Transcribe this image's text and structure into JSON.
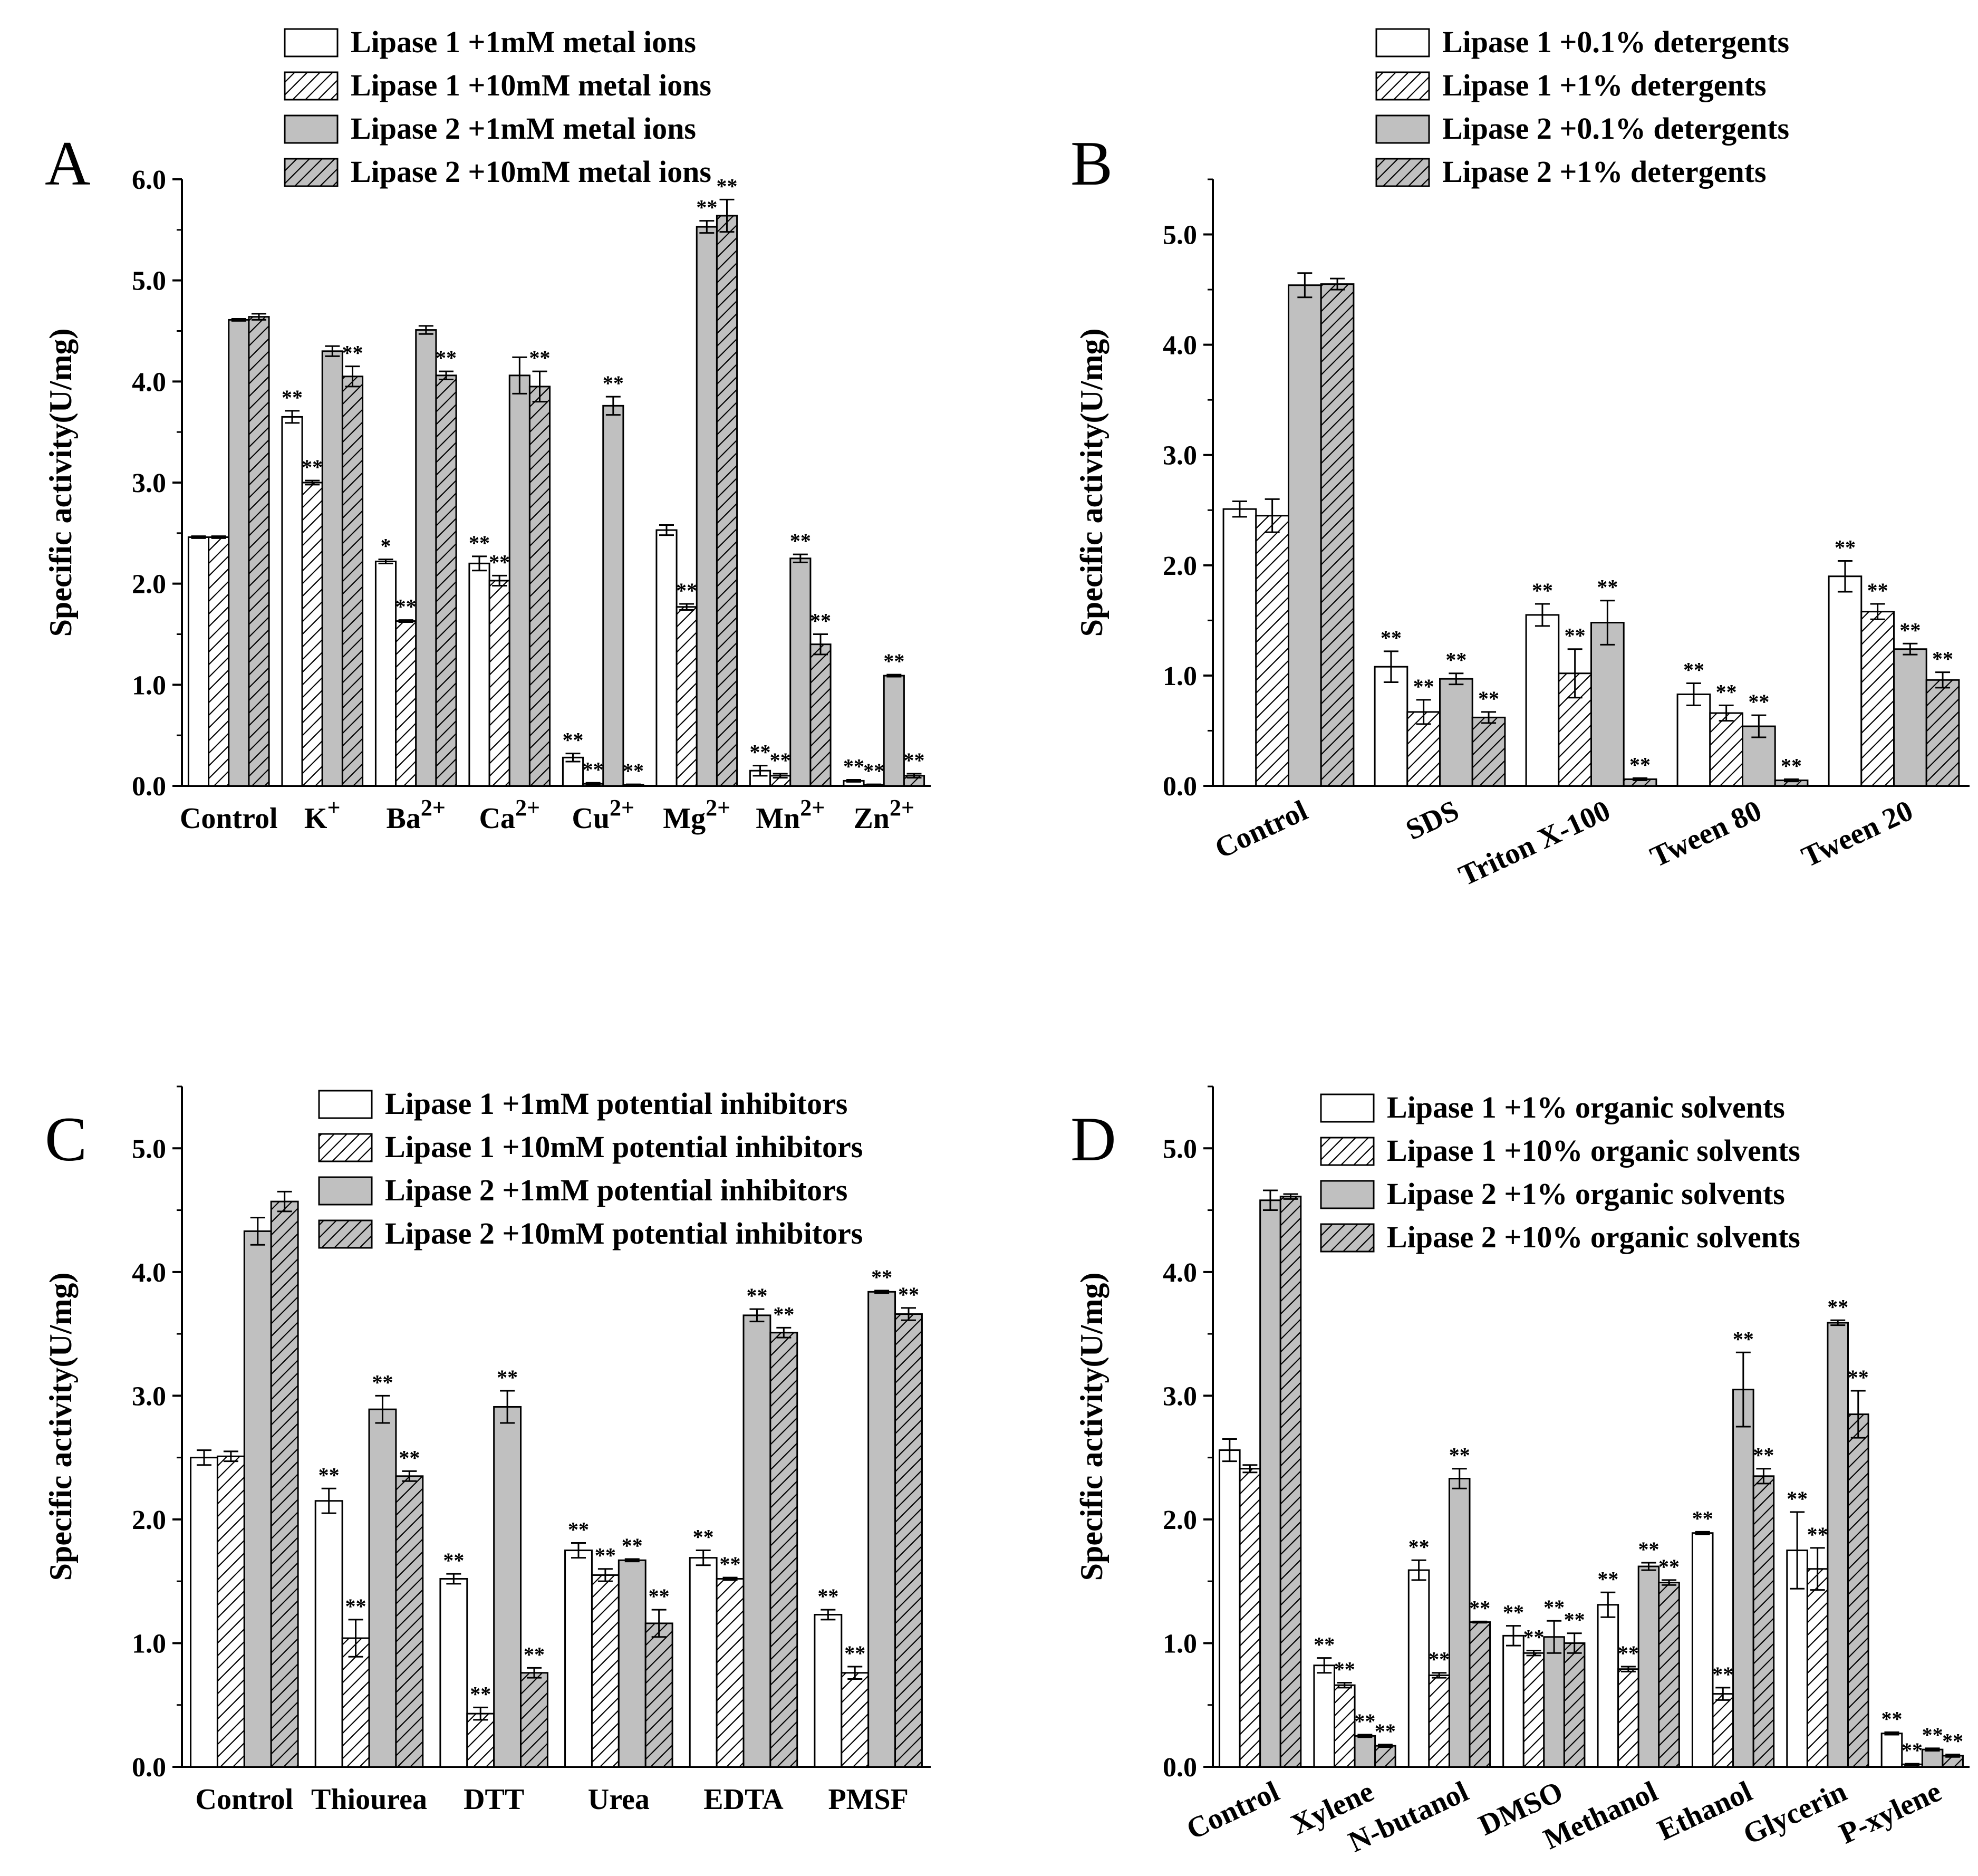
{
  "series_labels": {
    "l1_low": "Lipase 1",
    "l1_high": "Lipase 1",
    "l2_low": "Lipase 2",
    "l2_high": "Lipase 2"
  },
  "chart_data": [
    {
      "type": "bar",
      "panel_label": "A",
      "ylabel": "Specific activity(U/mg)",
      "ylim": [
        0,
        6.0
      ],
      "yticks": [
        "0.0",
        "1.0",
        "2.0",
        "3.0",
        "4.0",
        "5.0",
        "6.0"
      ],
      "categories": [
        {
          "base": "Control",
          "sup": ""
        },
        {
          "base": "K",
          "sup": "+"
        },
        {
          "base": "Ba",
          "sup": "2+"
        },
        {
          "base": "Ca",
          "sup": "2+"
        },
        {
          "base": "Cu",
          "sup": "2+"
        },
        {
          "base": "Mg",
          "sup": "2+"
        },
        {
          "base": "Mn",
          "sup": "2+"
        },
        {
          "base": "Zn",
          "sup": "2+"
        }
      ],
      "series": [
        {
          "name": "Lipase 1 +1mM metal ions",
          "pattern": "open",
          "values": [
            2.46,
            3.65,
            2.22,
            2.2,
            0.28,
            2.53,
            0.15,
            0.05
          ],
          "errors": [
            0.01,
            0.06,
            0.02,
            0.07,
            0.04,
            0.05,
            0.05,
            0.01
          ],
          "sig": [
            "",
            "**",
            "*",
            "**",
            "**",
            "",
            "**",
            "**"
          ]
        },
        {
          "name": "Lipase 1 +10mM metal ions",
          "pattern": "hatch",
          "values": [
            2.46,
            3.0,
            1.63,
            2.03,
            0.02,
            1.77,
            0.1,
            0.01
          ],
          "errors": [
            0.01,
            0.02,
            0.01,
            0.05,
            0.01,
            0.03,
            0.02,
            0.005
          ],
          "sig": [
            "",
            "**",
            "**",
            "**",
            "**",
            "**",
            "**",
            "**"
          ]
        },
        {
          "name": "Lipase 2 +1mM metal ions",
          "pattern": "gray",
          "values": [
            4.61,
            4.3,
            4.51,
            4.06,
            3.76,
            5.53,
            2.25,
            1.09
          ],
          "errors": [
            0.01,
            0.05,
            0.04,
            0.18,
            0.09,
            0.06,
            0.04,
            0.01
          ],
          "sig": [
            "",
            "",
            "",
            "",
            "**",
            "**",
            "**",
            "**"
          ]
        },
        {
          "name": "Lipase 2 +10mM metal ions",
          "pattern": "grayhatch",
          "values": [
            4.64,
            4.05,
            4.06,
            3.95,
            0.01,
            5.64,
            1.4,
            0.1
          ],
          "errors": [
            0.03,
            0.1,
            0.04,
            0.15,
            0.005,
            0.16,
            0.1,
            0.02
          ],
          "sig": [
            "",
            "**",
            "**",
            "**",
            "**",
            "**",
            "**",
            "**"
          ]
        }
      ]
    },
    {
      "type": "bar",
      "panel_label": "B",
      "ylabel": "Specific activity(U/mg)",
      "ylim": [
        0,
        5.5
      ],
      "yticks": [
        "0.0",
        "1.0",
        "2.0",
        "3.0",
        "4.0",
        "5.0"
      ],
      "categories": [
        {
          "base": "Control",
          "sup": ""
        },
        {
          "base": "SDS",
          "sup": ""
        },
        {
          "base": "Triton X-100",
          "sup": ""
        },
        {
          "base": "Tween 80",
          "sup": ""
        },
        {
          "base": "Tween 20",
          "sup": ""
        }
      ],
      "series": [
        {
          "name": "Lipase 1 +0.1% detergents",
          "pattern": "open",
          "values": [
            2.51,
            1.08,
            1.55,
            0.83,
            1.9
          ],
          "errors": [
            0.07,
            0.14,
            0.1,
            0.1,
            0.14
          ],
          "sig": [
            "",
            "**",
            "**",
            "**",
            "**"
          ]
        },
        {
          "name": "Lipase 1 +1% detergents",
          "pattern": "hatch",
          "values": [
            2.45,
            0.67,
            1.02,
            0.66,
            1.58
          ],
          "errors": [
            0.15,
            0.11,
            0.22,
            0.07,
            0.07
          ],
          "sig": [
            "",
            "**",
            "**",
            "**",
            "**"
          ]
        },
        {
          "name": "Lipase 2 +0.1% detergents",
          "pattern": "gray",
          "values": [
            4.54,
            0.97,
            1.48,
            0.54,
            1.24
          ],
          "errors": [
            0.11,
            0.05,
            0.2,
            0.1,
            0.05
          ],
          "sig": [
            "",
            "**",
            "**",
            "**",
            "**"
          ]
        },
        {
          "name": "Lipase 2 +1% detergents",
          "pattern": "grayhatch",
          "values": [
            4.55,
            0.62,
            0.06,
            0.05,
            0.96
          ],
          "errors": [
            0.05,
            0.05,
            0.01,
            0.01,
            0.07
          ],
          "sig": [
            "",
            "**",
            "**",
            "**",
            "**"
          ]
        }
      ]
    },
    {
      "type": "bar",
      "panel_label": "C",
      "ylabel": "Specific activity(U/mg)",
      "ylim": [
        0,
        5.5
      ],
      "yticks": [
        "0.0",
        "1.0",
        "2.0",
        "3.0",
        "4.0",
        "5.0"
      ],
      "categories": [
        {
          "base": "Control",
          "sup": ""
        },
        {
          "base": "Thiourea",
          "sup": ""
        },
        {
          "base": "DTT",
          "sup": ""
        },
        {
          "base": "Urea",
          "sup": ""
        },
        {
          "base": "EDTA",
          "sup": ""
        },
        {
          "base": "PMSF",
          "sup": ""
        }
      ],
      "series": [
        {
          "name": "Lipase 1 +1mM potential inhibitors",
          "pattern": "open",
          "values": [
            2.5,
            2.15,
            1.52,
            1.75,
            1.69,
            1.23
          ],
          "errors": [
            0.06,
            0.1,
            0.04,
            0.06,
            0.06,
            0.04
          ],
          "sig": [
            "",
            "**",
            "**",
            "**",
            "**",
            "**"
          ]
        },
        {
          "name": "Lipase 1 +10mM potential inhibitors",
          "pattern": "hatch",
          "values": [
            2.51,
            1.04,
            0.43,
            1.55,
            1.52,
            0.76
          ],
          "errors": [
            0.04,
            0.15,
            0.05,
            0.05,
            0.01,
            0.05
          ],
          "sig": [
            "",
            "**",
            "**",
            "**",
            "**",
            "**"
          ]
        },
        {
          "name": "Lipase 2 +1mM potential inhibitors",
          "pattern": "gray",
          "values": [
            4.33,
            2.89,
            2.91,
            1.67,
            3.65,
            3.84
          ],
          "errors": [
            0.11,
            0.11,
            0.13,
            0.01,
            0.05,
            0.01
          ],
          "sig": [
            "",
            "**",
            "**",
            "**",
            "**",
            "**"
          ]
        },
        {
          "name": "Lipase 2 +10mM potential inhibitors",
          "pattern": "grayhatch",
          "values": [
            4.57,
            2.35,
            0.76,
            1.16,
            3.51,
            3.66
          ],
          "errors": [
            0.08,
            0.04,
            0.04,
            0.11,
            0.04,
            0.05
          ],
          "sig": [
            "",
            "**",
            "**",
            "**",
            "**",
            "**"
          ]
        }
      ]
    },
    {
      "type": "bar",
      "panel_label": "D",
      "ylabel": "Specific activity(U/mg)",
      "ylim": [
        0,
        5.5
      ],
      "yticks": [
        "0.0",
        "1.0",
        "2.0",
        "3.0",
        "4.0",
        "5.0"
      ],
      "categories": [
        {
          "base": "Control",
          "sup": ""
        },
        {
          "base": "Xylene",
          "sup": ""
        },
        {
          "base": "N-butanol",
          "sup": ""
        },
        {
          "base": "DMSO",
          "sup": ""
        },
        {
          "base": "Methanol",
          "sup": ""
        },
        {
          "base": "Ethanol",
          "sup": ""
        },
        {
          "base": "Glycerin",
          "sup": ""
        },
        {
          "base": "P-xylene",
          "sup": ""
        }
      ],
      "series": [
        {
          "name": "Lipase 1 +1% organic solvents",
          "pattern": "open",
          "values": [
            2.56,
            0.82,
            1.59,
            1.06,
            1.31,
            1.89,
            1.75,
            0.27
          ],
          "errors": [
            0.09,
            0.06,
            0.08,
            0.08,
            0.1,
            0.01,
            0.31,
            0.01
          ],
          "sig": [
            "",
            "**",
            "**",
            "**",
            "**",
            "**",
            "**",
            "**"
          ]
        },
        {
          "name": "Lipase 1 +10% organic solvents",
          "pattern": "hatch",
          "values": [
            2.41,
            0.66,
            0.74,
            0.92,
            0.79,
            0.59,
            1.6,
            0.02
          ],
          "errors": [
            0.03,
            0.02,
            0.02,
            0.02,
            0.02,
            0.05,
            0.17,
            0.005
          ],
          "sig": [
            "",
            "**",
            "**",
            "**",
            "**",
            "**",
            "**",
            "**"
          ]
        },
        {
          "name": "Lipase 2 +1% organic solvents",
          "pattern": "gray",
          "values": [
            4.58,
            0.25,
            2.33,
            1.05,
            1.62,
            3.05,
            3.59,
            0.14
          ],
          "errors": [
            0.08,
            0.01,
            0.08,
            0.13,
            0.03,
            0.3,
            0.02,
            0.01
          ],
          "sig": [
            "",
            "**",
            "**",
            "**",
            "**",
            "**",
            "**",
            "**"
          ]
        },
        {
          "name": "Lipase 2 +10% organic solvents",
          "pattern": "grayhatch",
          "values": [
            4.61,
            0.17,
            1.17,
            1.0,
            1.49,
            2.35,
            2.85,
            0.09
          ],
          "errors": [
            0.02,
            0.01,
            0.005,
            0.08,
            0.02,
            0.06,
            0.19,
            0.01
          ],
          "sig": [
            "",
            "**",
            "**",
            "**",
            "**",
            "**",
            "**",
            "**"
          ]
        }
      ]
    }
  ]
}
